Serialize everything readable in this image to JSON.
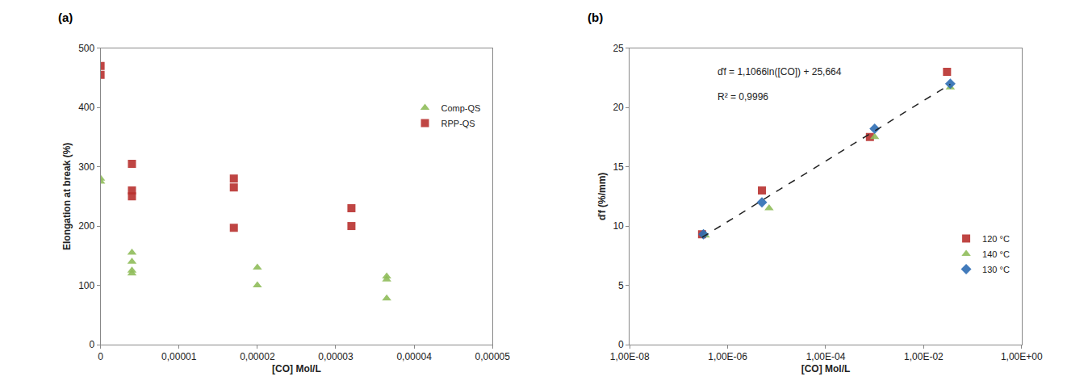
{
  "chart_data": [
    {
      "type": "scatter",
      "title": "(a)",
      "x_label": "[CO] Mol/L",
      "y_label": "Elongation at break (%)",
      "xlim": [
        0,
        5e-05
      ],
      "xticks": [
        0,
        {
          "value": 1e-05,
          "label": "0,00001"
        },
        {
          "value": 2e-05,
          "label": "0,00002"
        },
        {
          "value": 3e-05,
          "label": "0,00003"
        },
        {
          "value": 4e-05,
          "label": "0,00004"
        },
        {
          "value": 5e-05,
          "label": "0,00005"
        }
      ],
      "ylim": [
        0,
        500
      ],
      "yticks": [
        0,
        100,
        200,
        300,
        400,
        500
      ],
      "grid": false,
      "legend": "upper right",
      "series": [
        {
          "name": "Comp-QS",
          "color": "#8fbc5a",
          "marker": "triangle",
          "x": [
            0,
            0,
            4e-06,
            4e-06,
            4e-06,
            4e-06,
            2e-05,
            2e-05,
            3.65e-05,
            3.65e-05,
            3.65e-05
          ],
          "values": [
            280,
            275,
            155,
            140,
            125,
            120,
            130,
            100,
            115,
            110,
            78
          ]
        },
        {
          "name": "RPP-QS",
          "color": "#b8312f",
          "marker": "square",
          "x": [
            0,
            0,
            4e-06,
            4e-06,
            4e-06,
            1.7e-05,
            1.7e-05,
            1.7e-05,
            3.2e-05,
            3.2e-05
          ],
          "values": [
            470,
            455,
            305,
            260,
            250,
            280,
            265,
            197,
            230,
            200
          ]
        }
      ]
    },
    {
      "type": "scatter",
      "title": "(b)",
      "x_label": "[CO] Mol/L",
      "y_label": "ďf (%/mm)",
      "log": "x",
      "xlim": [
        1e-08,
        1
      ],
      "xticks": [
        {
          "value": 1e-08,
          "label": "1,00E-08"
        },
        {
          "value": 1e-06,
          "label": "1,00E-06"
        },
        {
          "value": 0.0001,
          "label": "1,00E-04"
        },
        {
          "value": 0.01,
          "label": "1,00E-02"
        },
        {
          "value": 1,
          "label": "1,00E+00"
        }
      ],
      "ylim": [
        0,
        25
      ],
      "yticks": [
        0,
        5,
        10,
        15,
        20,
        25
      ],
      "grid": false,
      "legend": "lower right",
      "annotations": [
        "ďf = 1,1066ln([CO]) + 25,664",
        "R² = 0,9996"
      ],
      "series": [
        {
          "name": "120 °C",
          "color": "#b8312f",
          "marker": "square",
          "x": [
            3e-07,
            5e-06,
            0.0008,
            0.03
          ],
          "values": [
            9.3,
            13,
            17.5,
            23
          ]
        },
        {
          "name": "140 °C",
          "color": "#8fbc5a",
          "marker": "triangle",
          "x": [
            3.5e-07,
            7e-06,
            0.001,
            0.035
          ],
          "values": [
            9.2,
            11.5,
            17.5,
            21.7
          ]
        },
        {
          "name": "130 °C",
          "color": "#2e6db4",
          "marker": "diamond",
          "x": [
            3.2e-07,
            5e-06,
            0.001,
            0.035
          ],
          "values": [
            9.3,
            12,
            18.2,
            22
          ]
        },
        {
          "type": "line",
          "color": "#222222",
          "line_style": "dashed",
          "x": [
            3e-07,
            0.035
          ],
          "values": [
            9.04,
            21.96
          ]
        }
      ]
    }
  ]
}
